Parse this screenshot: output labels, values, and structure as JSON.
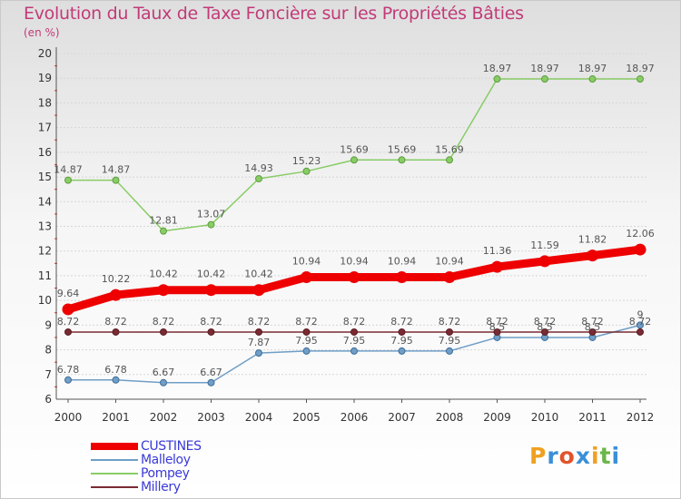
{
  "chart_data": {
    "type": "line",
    "title": "Evolution du Taux de Taxe Foncière sur les Propriétés Bâties",
    "subtitle": "(en %)",
    "xlabel": "",
    "ylabel": "(en %)",
    "ylim": [
      6,
      20
    ],
    "yticks": [
      "6",
      "7",
      "8",
      "9",
      "10",
      "11",
      "12",
      "13",
      "14",
      "15",
      "16",
      "17",
      "18",
      "19",
      "20"
    ],
    "categories": [
      "2000",
      "2001",
      "2002",
      "2003",
      "2004",
      "2005",
      "2006",
      "2007",
      "2008",
      "2009",
      "2010",
      "2011",
      "2012"
    ],
    "grid": "horizontal",
    "legend_position": "bottom-left",
    "series": [
      {
        "name": "CUSTINES",
        "color": "#ee0000",
        "emphasis": "thick",
        "values": [
          9.64,
          10.22,
          10.42,
          10.42,
          10.42,
          10.94,
          10.94,
          10.94,
          10.94,
          11.36,
          11.59,
          11.82,
          12.06
        ],
        "labels": [
          "9.64",
          "10.22",
          "10.42",
          "10.42",
          "10.42",
          "10.94",
          "10.94",
          "10.94",
          "10.94",
          "11.36",
          "11.59",
          "11.82",
          "12.06"
        ]
      },
      {
        "name": "Malleloy",
        "color": "#6f9ec6",
        "emphasis": "thin",
        "values": [
          6.78,
          6.78,
          6.67,
          6.67,
          7.87,
          7.95,
          7.95,
          7.95,
          7.95,
          8.5,
          8.5,
          8.5,
          9
        ],
        "labels": [
          "6.78",
          "6.78",
          "6.67",
          "6.67",
          "7.87",
          "7.95",
          "7.95",
          "7.95",
          "7.95",
          "8.5",
          "8.5",
          "8.5",
          "9"
        ]
      },
      {
        "name": "Pompey",
        "color": "#88cc66",
        "emphasis": "thin",
        "values": [
          14.87,
          14.87,
          12.81,
          13.07,
          14.93,
          15.23,
          15.69,
          15.69,
          15.69,
          18.97,
          18.97,
          18.97,
          18.97
        ],
        "labels": [
          "14.87",
          "14.87",
          "12.81",
          "13.07",
          "14.93",
          "15.23",
          "15.69",
          "15.69",
          "15.69",
          "18.97",
          "18.97",
          "18.97",
          "18.97"
        ]
      },
      {
        "name": "Millery",
        "color": "#7a2a32",
        "emphasis": "thin",
        "values": [
          8.72,
          8.72,
          8.72,
          8.72,
          8.72,
          8.72,
          8.72,
          8.72,
          8.72,
          8.72,
          8.72,
          8.72,
          8.72
        ],
        "labels": [
          "8.72",
          "8.72",
          "8.72",
          "8.72",
          "8.72",
          "8.72",
          "8.72",
          "8.72",
          "8.72",
          "8.72",
          "8.72",
          "8.72",
          "8.72"
        ]
      }
    ]
  },
  "logo": {
    "letters": [
      "P",
      "r",
      "o",
      "x",
      "i",
      "t",
      "i"
    ],
    "colors": [
      "#f0a020",
      "#3a8fd8",
      "#e2522a",
      "#3a8fd8",
      "#f0a020",
      "#6bb64a",
      "#3a8fd8"
    ]
  }
}
